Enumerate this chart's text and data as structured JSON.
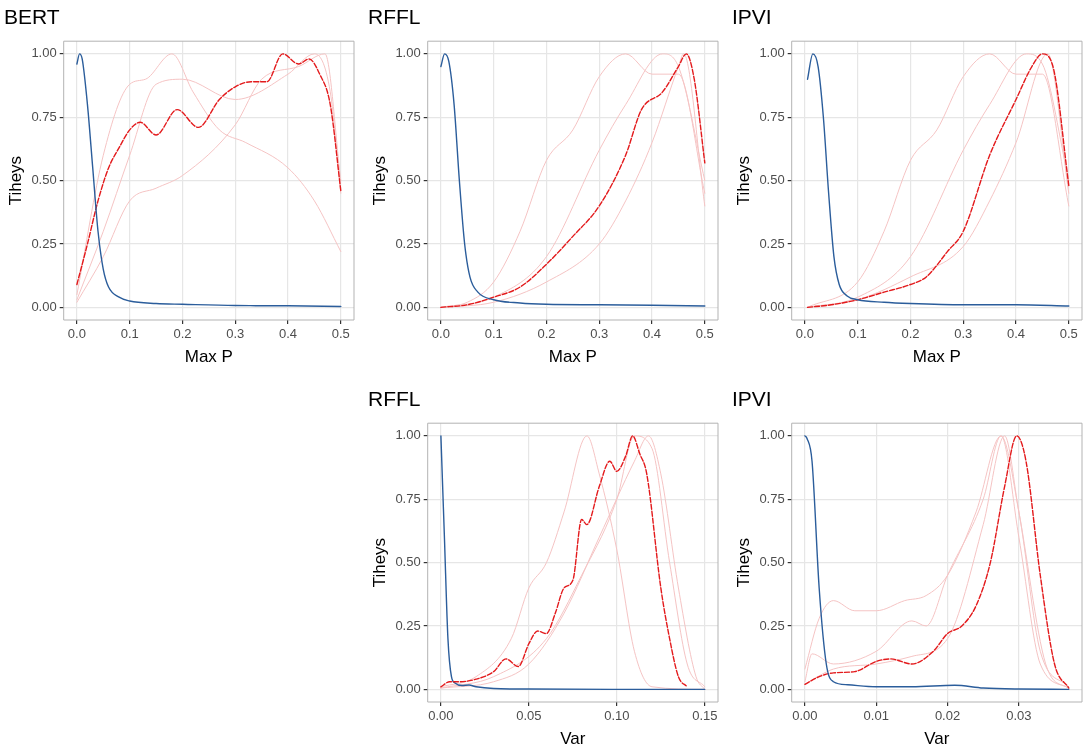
{
  "chart_data": [
    {
      "type": "line",
      "title": "BERT",
      "xlabel": "Max P",
      "ylabel": "Tiheys",
      "grid": true,
      "xlim": [
        -0.025,
        0.525
      ],
      "ylim": [
        -0.05,
        1.05
      ],
      "xticks": [
        {
          "value": 0,
          "label": "0.0"
        },
        {
          "value": 0.1,
          "label": "0.1"
        },
        {
          "value": 0.2,
          "label": "0.2"
        },
        {
          "value": 0.3,
          "label": "0.3"
        },
        {
          "value": 0.4,
          "label": "0.4"
        },
        {
          "value": 0.5,
          "label": "0.5"
        }
      ],
      "yticks": [
        {
          "value": 0,
          "label": "0.00"
        },
        {
          "value": 0.25,
          "label": "0.25"
        },
        {
          "value": 0.5,
          "label": "0.50"
        },
        {
          "value": 0.75,
          "label": "0.75"
        },
        {
          "value": 1,
          "label": "1.00"
        }
      ],
      "series": [
        {
          "color": "#f5c4c4",
          "line_style": "solid",
          "x": [
            0,
            0.05,
            0.1,
            0.13,
            0.18,
            0.22,
            0.27,
            0.32,
            0.4,
            0.45,
            0.5
          ],
          "values": [
            0.05,
            0.6,
            0.88,
            0.9,
            1.0,
            0.85,
            0.7,
            0.65,
            0.55,
            0.42,
            0.22
          ]
        },
        {
          "color": "#f5c4c4",
          "line_style": "solid",
          "x": [
            0,
            0.05,
            0.1,
            0.15,
            0.2,
            0.3,
            0.4,
            0.45,
            0.48,
            0.5
          ],
          "values": [
            0.03,
            0.3,
            0.6,
            0.88,
            0.9,
            0.82,
            0.92,
            1.0,
            0.85,
            0.45
          ]
        },
        {
          "color": "#f5c4c4",
          "line_style": "solid",
          "x": [
            0,
            0.05,
            0.1,
            0.15,
            0.2,
            0.3,
            0.35,
            0.42,
            0.47,
            0.5
          ],
          "values": [
            0.02,
            0.2,
            0.42,
            0.47,
            0.52,
            0.72,
            0.9,
            0.95,
            1.0,
            0.5
          ]
        },
        {
          "color": "#e31a1c",
          "line_style": "dashed",
          "x": [
            0,
            0.02,
            0.04,
            0.06,
            0.08,
            0.1,
            0.12,
            0.15,
            0.19,
            0.23,
            0.27,
            0.3,
            0.33,
            0.36,
            0.39,
            0.42,
            0.44,
            0.46,
            0.48,
            0.5
          ],
          "values": [
            0.09,
            0.25,
            0.42,
            0.55,
            0.63,
            0.7,
            0.73,
            0.68,
            0.78,
            0.71,
            0.82,
            0.87,
            0.89,
            0.89,
            1.0,
            0.96,
            0.98,
            0.92,
            0.8,
            0.46
          ]
        },
        {
          "color": "#2b5d9b",
          "line_style": "solid",
          "x": [
            0,
            0.005,
            0.01,
            0.02,
            0.03,
            0.04,
            0.05,
            0.06,
            0.08,
            0.1,
            0.15,
            0.2,
            0.3,
            0.4,
            0.5
          ],
          "values": [
            0.96,
            1.0,
            0.98,
            0.8,
            0.55,
            0.3,
            0.15,
            0.08,
            0.04,
            0.025,
            0.015,
            0.012,
            0.007,
            0.006,
            0.003
          ]
        }
      ]
    },
    {
      "type": "line",
      "title": "RFFL",
      "xlabel": "Max P",
      "ylabel": "Tiheys",
      "grid": true,
      "xlim": [
        -0.025,
        0.525
      ],
      "ylim": [
        -0.05,
        1.05
      ],
      "xticks": [
        {
          "value": 0,
          "label": "0.0"
        },
        {
          "value": 0.1,
          "label": "0.1"
        },
        {
          "value": 0.2,
          "label": "0.2"
        },
        {
          "value": 0.3,
          "label": "0.3"
        },
        {
          "value": 0.4,
          "label": "0.4"
        },
        {
          "value": 0.5,
          "label": "0.5"
        }
      ],
      "yticks": [
        {
          "value": 0,
          "label": "0.00"
        },
        {
          "value": 0.25,
          "label": "0.25"
        },
        {
          "value": 0.5,
          "label": "0.50"
        },
        {
          "value": 0.75,
          "label": "0.75"
        },
        {
          "value": 1,
          "label": "1.00"
        }
      ],
      "series": [
        {
          "color": "#f5c4c4",
          "line_style": "solid",
          "x": [
            0,
            0.05,
            0.1,
            0.15,
            0.2,
            0.25,
            0.3,
            0.35,
            0.4,
            0.45,
            0.5
          ],
          "values": [
            0,
            0.02,
            0.1,
            0.3,
            0.58,
            0.7,
            0.91,
            1.0,
            0.92,
            0.92,
            0.45
          ]
        },
        {
          "color": "#f5c4c4",
          "line_style": "solid",
          "x": [
            0,
            0.1,
            0.2,
            0.3,
            0.35,
            0.4,
            0.45,
            0.46,
            0.5
          ],
          "values": [
            0,
            0.02,
            0.1,
            0.25,
            0.42,
            0.65,
            0.95,
            1.0,
            0.4
          ]
        },
        {
          "color": "#f5c4c4",
          "line_style": "solid",
          "x": [
            0,
            0.1,
            0.2,
            0.3,
            0.35,
            0.42,
            0.45,
            0.5
          ],
          "values": [
            0,
            0.04,
            0.2,
            0.62,
            0.8,
            1.0,
            0.95,
            0.5
          ]
        },
        {
          "color": "#e31a1c",
          "line_style": "dashed",
          "x": [
            0,
            0.05,
            0.1,
            0.15,
            0.2,
            0.25,
            0.3,
            0.35,
            0.38,
            0.42,
            0.45,
            0.465,
            0.48,
            0.5
          ],
          "values": [
            0,
            0.01,
            0.04,
            0.08,
            0.17,
            0.28,
            0.4,
            0.6,
            0.78,
            0.85,
            0.95,
            1.0,
            0.9,
            0.57
          ]
        },
        {
          "color": "#2b5d9b",
          "line_style": "solid",
          "x": [
            0,
            0.007,
            0.015,
            0.025,
            0.035,
            0.045,
            0.055,
            0.07,
            0.1,
            0.15,
            0.2,
            0.3,
            0.4,
            0.5
          ],
          "values": [
            0.95,
            1.0,
            0.97,
            0.8,
            0.5,
            0.25,
            0.12,
            0.06,
            0.03,
            0.017,
            0.012,
            0.01,
            0.008,
            0.005
          ]
        }
      ]
    },
    {
      "type": "line",
      "title": "IPVI",
      "xlabel": "Max P",
      "ylabel": "Tiheys",
      "grid": true,
      "xlim": [
        -0.025,
        0.525
      ],
      "ylim": [
        -0.05,
        1.05
      ],
      "xticks": [
        {
          "value": 0,
          "label": "0.0"
        },
        {
          "value": 0.1,
          "label": "0.1"
        },
        {
          "value": 0.2,
          "label": "0.2"
        },
        {
          "value": 0.3,
          "label": "0.3"
        },
        {
          "value": 0.4,
          "label": "0.4"
        },
        {
          "value": 0.5,
          "label": "0.5"
        }
      ],
      "yticks": [
        {
          "value": 0,
          "label": "0.00"
        },
        {
          "value": 0.25,
          "label": "0.25"
        },
        {
          "value": 0.5,
          "label": "0.50"
        },
        {
          "value": 0.75,
          "label": "0.75"
        },
        {
          "value": 1,
          "label": "1.00"
        }
      ],
      "series": [
        {
          "color": "#f5c4c4",
          "line_style": "solid",
          "x": [
            0.005,
            0.1,
            0.15,
            0.2,
            0.25,
            0.3,
            0.35,
            0.4,
            0.45,
            0.5
          ],
          "values": [
            0,
            0.1,
            0.3,
            0.58,
            0.7,
            0.91,
            1.0,
            0.92,
            0.92,
            0.4
          ]
        },
        {
          "color": "#f5c4c4",
          "line_style": "solid",
          "x": [
            0.005,
            0.1,
            0.2,
            0.3,
            0.35,
            0.4,
            0.46,
            0.5
          ],
          "values": [
            0,
            0.03,
            0.12,
            0.24,
            0.42,
            0.65,
            1.0,
            0.45
          ]
        },
        {
          "color": "#f5c4c4",
          "line_style": "solid",
          "x": [
            0.005,
            0.1,
            0.2,
            0.3,
            0.35,
            0.42,
            0.45,
            0.5
          ],
          "values": [
            0,
            0.04,
            0.2,
            0.62,
            0.8,
            1.0,
            0.96,
            0.5
          ]
        },
        {
          "color": "#e31a1c",
          "line_style": "dashed",
          "x": [
            0.005,
            0.05,
            0.1,
            0.15,
            0.2,
            0.23,
            0.27,
            0.3,
            0.35,
            0.4,
            0.43,
            0.45,
            0.47,
            0.5
          ],
          "values": [
            0,
            0.01,
            0.03,
            0.06,
            0.09,
            0.12,
            0.22,
            0.3,
            0.6,
            0.82,
            0.95,
            1.0,
            0.95,
            0.48
          ]
        },
        {
          "color": "#2b5d9b",
          "line_style": "solid",
          "x": [
            0.005,
            0.015,
            0.025,
            0.035,
            0.045,
            0.055,
            0.065,
            0.08,
            0.1,
            0.15,
            0.2,
            0.3,
            0.4,
            0.5
          ],
          "values": [
            0.9,
            1.0,
            0.95,
            0.75,
            0.45,
            0.2,
            0.09,
            0.045,
            0.03,
            0.02,
            0.015,
            0.01,
            0.01,
            0.005
          ]
        }
      ]
    },
    {
      "type": "line",
      "title": "RFFL",
      "xlabel": "Var",
      "ylabel": "Tiheys",
      "grid": true,
      "xlim": [
        -0.0075,
        0.1575
      ],
      "ylim": [
        -0.05,
        1.05
      ],
      "xticks": [
        {
          "value": 0,
          "label": "0.00"
        },
        {
          "value": 0.05,
          "label": "0.05"
        },
        {
          "value": 0.1,
          "label": "0.10"
        },
        {
          "value": 0.15,
          "label": "0.15"
        }
      ],
      "yticks": [
        {
          "value": 0,
          "label": "0.00"
        },
        {
          "value": 0.25,
          "label": "0.25"
        },
        {
          "value": 0.5,
          "label": "0.50"
        },
        {
          "value": 0.75,
          "label": "0.75"
        },
        {
          "value": 1,
          "label": "1.00"
        }
      ],
      "series": [
        {
          "color": "#f5c4c4",
          "line_style": "solid",
          "x": [
            0,
            0.02,
            0.04,
            0.05,
            0.06,
            0.07,
            0.083,
            0.09,
            0.1,
            0.11,
            0.12,
            0.15
          ],
          "values": [
            0.01,
            0.05,
            0.2,
            0.4,
            0.5,
            0.7,
            1.0,
            0.85,
            0.55,
            0.15,
            0.01,
            0
          ]
        },
        {
          "color": "#f5c4c4",
          "line_style": "solid",
          "x": [
            0,
            0.03,
            0.05,
            0.07,
            0.09,
            0.11,
            0.118,
            0.125,
            0.135,
            0.145,
            0.15
          ],
          "values": [
            0.005,
            0.03,
            0.1,
            0.3,
            0.6,
            0.9,
            1.0,
            0.85,
            0.4,
            0.05,
            0
          ]
        },
        {
          "color": "#f5c4c4",
          "line_style": "solid",
          "x": [
            0,
            0.03,
            0.06,
            0.08,
            0.1,
            0.11,
            0.12,
            0.13,
            0.14,
            0.15
          ],
          "values": [
            0.005,
            0.05,
            0.2,
            0.45,
            0.75,
            1.0,
            0.95,
            0.5,
            0.1,
            0.01
          ]
        },
        {
          "color": "#2b5d9b",
          "line_style": "solid",
          "x": [
            0,
            0.002,
            0.004,
            0.006,
            0.008,
            0.012,
            0.016,
            0.02,
            0.03,
            0.05,
            0.1,
            0.15
          ],
          "values": [
            1.0,
            0.6,
            0.2,
            0.05,
            0.025,
            0.015,
            0.017,
            0.01,
            0.003,
            0.001,
            0,
            0
          ]
        },
        {
          "color": "#e31a1c",
          "line_style": "dashed",
          "x": [
            0,
            0.005,
            0.01,
            0.02,
            0.03,
            0.037,
            0.044,
            0.05,
            0.055,
            0.06,
            0.065,
            0.07,
            0.075,
            0.08,
            0.083,
            0.09,
            0.096,
            0.1,
            0.105,
            0.109,
            0.113,
            0.117,
            0.125,
            0.13,
            0.135,
            0.14
          ],
          "values": [
            0.01,
            0.03,
            0.03,
            0.04,
            0.07,
            0.12,
            0.09,
            0.18,
            0.23,
            0.22,
            0.3,
            0.4,
            0.43,
            0.67,
            0.65,
            0.8,
            0.9,
            0.86,
            0.92,
            1.0,
            0.93,
            0.85,
            0.4,
            0.2,
            0.05,
            0.01
          ]
        }
      ]
    },
    {
      "type": "line",
      "title": "IPVI",
      "xlabel": "Var",
      "ylabel": "Tiheys",
      "grid": true,
      "xlim": [
        -0.00185,
        0.03885
      ],
      "ylim": [
        -0.05,
        1.05
      ],
      "xticks": [
        {
          "value": 0,
          "label": "0.00"
        },
        {
          "value": 0.01,
          "label": "0.01"
        },
        {
          "value": 0.02,
          "label": "0.02"
        },
        {
          "value": 0.03,
          "label": "0.03"
        }
      ],
      "yticks": [
        {
          "value": 0,
          "label": "0.00"
        },
        {
          "value": 0.25,
          "label": "0.25"
        },
        {
          "value": 0.5,
          "label": "0.50"
        },
        {
          "value": 0.75,
          "label": "0.75"
        },
        {
          "value": 1,
          "label": "1.00"
        }
      ],
      "series": [
        {
          "color": "#f5c4c4",
          "line_style": "solid",
          "x": [
            0,
            0.002,
            0.004,
            0.007,
            0.01,
            0.014,
            0.017,
            0.02,
            0.024,
            0.0275,
            0.03,
            0.033,
            0.037
          ],
          "values": [
            0.08,
            0.28,
            0.35,
            0.31,
            0.31,
            0.35,
            0.37,
            0.45,
            0.7,
            1.0,
            0.7,
            0.15,
            0.01
          ]
        },
        {
          "color": "#f5c4c4",
          "line_style": "solid",
          "x": [
            0,
            0.001,
            0.004,
            0.01,
            0.015,
            0.017,
            0.02,
            0.025,
            0.0275,
            0.03,
            0.033,
            0.037
          ],
          "values": [
            0.03,
            0.14,
            0.1,
            0.15,
            0.27,
            0.25,
            0.45,
            0.75,
            1.0,
            0.6,
            0.1,
            0.005
          ]
        },
        {
          "color": "#f5c4c4",
          "line_style": "solid",
          "x": [
            0,
            0.004,
            0.01,
            0.015,
            0.02,
            0.025,
            0.028,
            0.03,
            0.034,
            0.037
          ],
          "values": [
            0.02,
            0.08,
            0.1,
            0.13,
            0.2,
            0.65,
            1.0,
            0.7,
            0.08,
            0.005
          ]
        },
        {
          "color": "#e31a1c",
          "line_style": "dashed",
          "x": [
            0,
            0.002,
            0.004,
            0.007,
            0.01,
            0.012,
            0.015,
            0.018,
            0.02,
            0.022,
            0.024,
            0.026,
            0.028,
            0.0297,
            0.031,
            0.033,
            0.035,
            0.037
          ],
          "values": [
            0.02,
            0.05,
            0.065,
            0.07,
            0.11,
            0.12,
            0.1,
            0.15,
            0.22,
            0.25,
            0.33,
            0.5,
            0.8,
            1.0,
            0.9,
            0.45,
            0.1,
            0.005
          ]
        },
        {
          "color": "#2b5d9b",
          "line_style": "solid",
          "x": [
            0,
            0.0003,
            0.001,
            0.002,
            0.003,
            0.004,
            0.006,
            0.01,
            0.015,
            0.021,
            0.025,
            0.03,
            0.037
          ],
          "values": [
            1.0,
            0.99,
            0.9,
            0.4,
            0.1,
            0.03,
            0.018,
            0.01,
            0.01,
            0.016,
            0.005,
            0.001,
            0
          ]
        }
      ]
    }
  ]
}
